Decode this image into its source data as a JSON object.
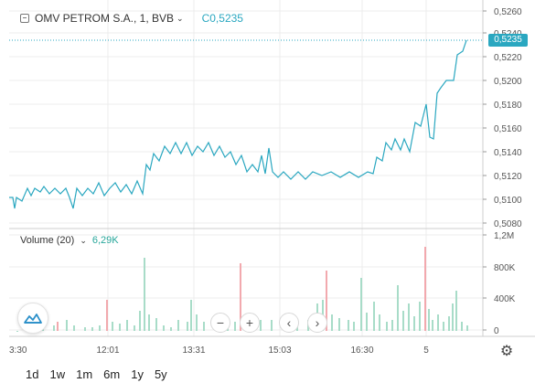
{
  "symbol": {
    "title": "OMV PETROM S.A., 1, BVB",
    "close_label": "C0,5235"
  },
  "volume": {
    "label": "Volume (20)",
    "value": "6,29K"
  },
  "last_price": "0,5235",
  "price_axis": {
    "ticks": [
      "0,5260",
      "0,5240",
      "0,5220",
      "0,5200",
      "0,5180",
      "0,5160",
      "0,5140",
      "0,5120",
      "0,5100",
      "0,5080"
    ]
  },
  "volume_axis": {
    "ticks": [
      "1,2M",
      "800K",
      "400K",
      "0"
    ]
  },
  "time_axis": {
    "ticks": [
      "3:30",
      "12:01",
      "13:31",
      "15:03",
      "16:30",
      "5"
    ]
  },
  "controls": {
    "zoom_out": "−",
    "zoom_in": "+",
    "scroll_left": "‹",
    "scroll_right": "›",
    "settings": "⚙"
  },
  "ranges": [
    "1d",
    "1w",
    "1m",
    "6m",
    "1y",
    "5y"
  ],
  "colors": {
    "line": "#2aa7c0",
    "up": "#a8dcc8",
    "down": "#f2a9ae",
    "tag": "#2aa7c0"
  }
}
